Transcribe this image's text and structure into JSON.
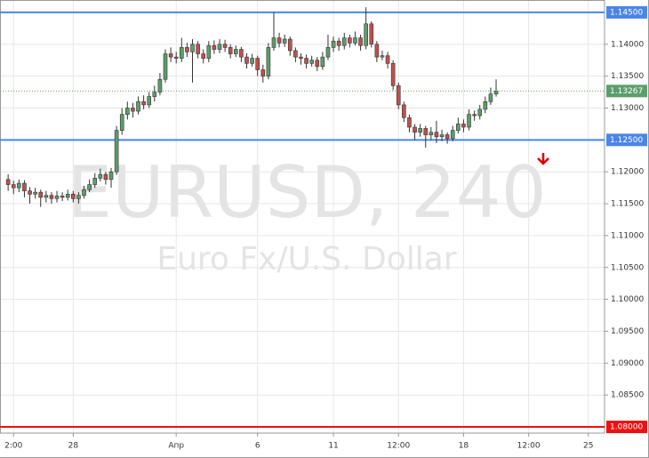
{
  "chart_data": {
    "type": "candlestick",
    "title": "EURUSD, 240",
    "subtitle": "Euro Fx/U.S. Dollar",
    "up_color": "#5c9e6b",
    "down_color": "#c0504d",
    "open": [
      1.1188,
      1.118,
      1.1175,
      1.1182,
      1.117,
      1.1165,
      1.1168,
      1.116,
      1.1163,
      1.1158,
      1.1162,
      1.116,
      1.1165,
      1.1158,
      1.1163,
      1.1172,
      1.118,
      1.119,
      1.1196,
      1.1188,
      1.12,
      1.1265,
      1.129,
      1.13,
      1.1295,
      1.131,
      1.1305,
      1.1318,
      1.1325,
      1.1345,
      1.1385,
      1.138,
      1.1378,
      1.1395,
      1.1388,
      1.14,
      1.1385,
      1.1378,
      1.1398,
      1.1392,
      1.14,
      1.1395,
      1.1385,
      1.1392,
      1.138,
      1.137,
      1.1378,
      1.136,
      1.135,
      1.1395,
      1.141,
      1.1402,
      1.1408,
      1.139,
      1.138,
      1.1378,
      1.137,
      1.1375,
      1.1365,
      1.138,
      1.1395,
      1.1405,
      1.1398,
      1.141,
      1.1402,
      1.141,
      1.1398,
      1.1432,
      1.14,
      1.138,
      1.1382,
      1.137,
      1.1335,
      1.1305,
      1.1285,
      1.127,
      1.1262,
      1.1268,
      1.1258,
      1.1262,
      1.1255,
      1.1258,
      1.1252,
      1.1265,
      1.1275,
      1.127,
      1.129,
      1.1288,
      1.1298,
      1.131,
      1.1322
    ],
    "high": [
      1.1196,
      1.1186,
      1.1188,
      1.1187,
      1.1176,
      1.1175,
      1.1172,
      1.117,
      1.1168,
      1.117,
      1.1168,
      1.1172,
      1.117,
      1.1168,
      1.1178,
      1.1188,
      1.1198,
      1.1205,
      1.12,
      1.1206,
      1.1272,
      1.13,
      1.131,
      1.1308,
      1.1318,
      1.132,
      1.1325,
      1.1335,
      1.1355,
      1.1392,
      1.1395,
      1.1388,
      1.141,
      1.1402,
      1.1408,
      1.1405,
      1.1392,
      1.1405,
      1.1406,
      1.1408,
      1.1407,
      1.14,
      1.1398,
      1.1396,
      1.1386,
      1.1385,
      1.1382,
      1.1368,
      1.1402,
      1.145,
      1.1418,
      1.1415,
      1.1412,
      1.1395,
      1.1386,
      1.1384,
      1.1382,
      1.138,
      1.1388,
      1.1415,
      1.1412,
      1.141,
      1.1418,
      1.1415,
      1.142,
      1.1415,
      1.1458,
      1.1436,
      1.1405,
      1.139,
      1.1388,
      1.1375,
      1.134,
      1.131,
      1.129,
      1.1275,
      1.1275,
      1.1272,
      1.127,
      1.128,
      1.1266,
      1.1262,
      1.1272,
      1.1285,
      1.1282,
      1.1298,
      1.1296,
      1.1305,
      1.1318,
      1.1332,
      1.1345
    ],
    "low": [
      1.117,
      1.1165,
      1.1168,
      1.116,
      1.115,
      1.1158,
      1.1145,
      1.1152,
      1.115,
      1.1152,
      1.1154,
      1.1155,
      1.1152,
      1.115,
      1.1158,
      1.1168,
      1.1175,
      1.1185,
      1.118,
      1.1175,
      1.1195,
      1.1258,
      1.1282,
      1.1285,
      1.129,
      1.1298,
      1.13,
      1.131,
      1.132,
      1.134,
      1.1372,
      1.137,
      1.1372,
      1.138,
      1.134,
      1.1378,
      1.137,
      1.1372,
      1.1385,
      1.1386,
      1.1388,
      1.1378,
      1.138,
      1.1372,
      1.1362,
      1.1365,
      1.135,
      1.134,
      1.1345,
      1.139,
      1.1395,
      1.1396,
      1.1382,
      1.1372,
      1.1368,
      1.1362,
      1.1365,
      1.1358,
      1.136,
      1.1375,
      1.1388,
      1.139,
      1.1392,
      1.1395,
      1.1398,
      1.139,
      1.1392,
      1.1395,
      1.1372,
      1.1375,
      1.1362,
      1.1328,
      1.1298,
      1.1278,
      1.1262,
      1.125,
      1.1255,
      1.1238,
      1.125,
      1.1245,
      1.1248,
      1.1244,
      1.1248,
      1.126,
      1.1262,
      1.1265,
      1.128,
      1.1282,
      1.1292,
      1.1305,
      1.1318
    ],
    "close": [
      1.118,
      1.1175,
      1.1182,
      1.117,
      1.1165,
      1.1168,
      1.116,
      1.1163,
      1.1158,
      1.1162,
      1.116,
      1.1165,
      1.1158,
      1.1163,
      1.1172,
      1.118,
      1.119,
      1.1196,
      1.1188,
      1.12,
      1.1265,
      1.129,
      1.13,
      1.1295,
      1.131,
      1.1305,
      1.1318,
      1.1325,
      1.1345,
      1.1385,
      1.138,
      1.1378,
      1.1395,
      1.1388,
      1.14,
      1.1385,
      1.1378,
      1.1398,
      1.1392,
      1.14,
      1.1395,
      1.1385,
      1.1392,
      1.138,
      1.137,
      1.1378,
      1.136,
      1.135,
      1.1395,
      1.141,
      1.1402,
      1.1408,
      1.139,
      1.138,
      1.1378,
      1.137,
      1.1375,
      1.1365,
      1.138,
      1.1395,
      1.1405,
      1.1398,
      1.141,
      1.1402,
      1.141,
      1.1398,
      1.1432,
      1.14,
      1.138,
      1.1382,
      1.137,
      1.1335,
      1.1305,
      1.1285,
      1.127,
      1.1262,
      1.1268,
      1.1258,
      1.1262,
      1.1255,
      1.1258,
      1.1252,
      1.1265,
      1.1275,
      1.127,
      1.129,
      1.1288,
      1.1298,
      1.131,
      1.1322,
      1.13267
    ],
    "xlim": [
      -1.5,
      110
    ],
    "xticks": [
      {
        "value": 1,
        "label": "2:00"
      },
      {
        "value": 12,
        "label": "28"
      },
      {
        "value": 31,
        "label": "Апр"
      },
      {
        "value": 46,
        "label": "6"
      },
      {
        "value": 60,
        "label": "11"
      },
      {
        "value": 72,
        "label": "12:00"
      },
      {
        "value": 84,
        "label": "18"
      },
      {
        "value": 96,
        "label": "12:00"
      },
      {
        "value": 107,
        "label": "25"
      }
    ],
    "ylim": [
      1.07903,
      1.14694
    ],
    "yticks": [
      {
        "value": 1.14,
        "label": "1.14000"
      },
      {
        "value": 1.135,
        "label": "1.13500"
      },
      {
        "value": 1.13,
        "label": "1.13000"
      },
      {
        "value": 1.12,
        "label": "1.12000"
      },
      {
        "value": 1.115,
        "label": "1.11500"
      },
      {
        "value": 1.11,
        "label": "1.11000"
      },
      {
        "value": 1.105,
        "label": "1.10500"
      },
      {
        "value": 1.1,
        "label": "1.10000"
      },
      {
        "value": 1.095,
        "label": "1.09500"
      },
      {
        "value": 1.09,
        "label": "1.09000"
      },
      {
        "value": 1.085,
        "label": "1.08500"
      }
    ],
    "levels": [
      {
        "value": 1.145,
        "label": "1.14500",
        "color": "#4a86e8"
      },
      {
        "value": 1.125,
        "label": "1.12500",
        "color": "#4a86e8"
      },
      {
        "value": 1.08,
        "label": "1.08000",
        "color": "#ee1111"
      }
    ],
    "last_price": {
      "value": 1.13267,
      "label": "1.13267",
      "color": "#5c9e6b"
    },
    "grid": true
  }
}
